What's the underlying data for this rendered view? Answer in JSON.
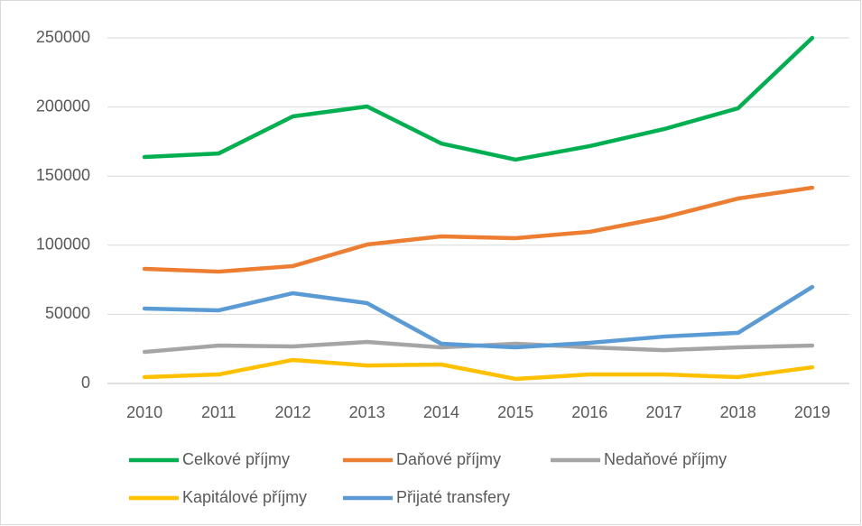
{
  "chart_data": {
    "type": "line",
    "categories": [
      "2010",
      "2011",
      "2012",
      "2013",
      "2014",
      "2015",
      "2016",
      "2017",
      "2018",
      "2019"
    ],
    "series": [
      {
        "name": "Celkové příjmy",
        "color": "#00b050",
        "values": [
          163800,
          166400,
          193200,
          200400,
          173600,
          161900,
          171700,
          184000,
          199100,
          250000
        ]
      },
      {
        "name": "Daňové příjmy",
        "color": "#ed7d31",
        "values": [
          82900,
          80900,
          84900,
          100500,
          106400,
          105100,
          109700,
          120100,
          133800,
          141600
        ]
      },
      {
        "name": "Nedaňové příjmy",
        "color": "#a5a5a5",
        "values": [
          22800,
          27400,
          26800,
          30000,
          26100,
          28700,
          26100,
          24100,
          26100,
          27400
        ]
      },
      {
        "name": "Kapitálové příjmy",
        "color": "#ffc000",
        "values": [
          4600,
          6500,
          17000,
          13000,
          13700,
          3300,
          6500,
          6500,
          4600,
          11700
        ]
      },
      {
        "name": "Přijaté transfery",
        "color": "#5b9bd5",
        "values": [
          54200,
          52900,
          65300,
          58100,
          28700,
          26100,
          29400,
          33900,
          36600,
          69800
        ]
      }
    ],
    "ylim": [
      0,
      250000
    ],
    "yticks": [
      0,
      50000,
      100000,
      150000,
      200000,
      250000
    ],
    "grid": true,
    "legend": "bottom"
  }
}
